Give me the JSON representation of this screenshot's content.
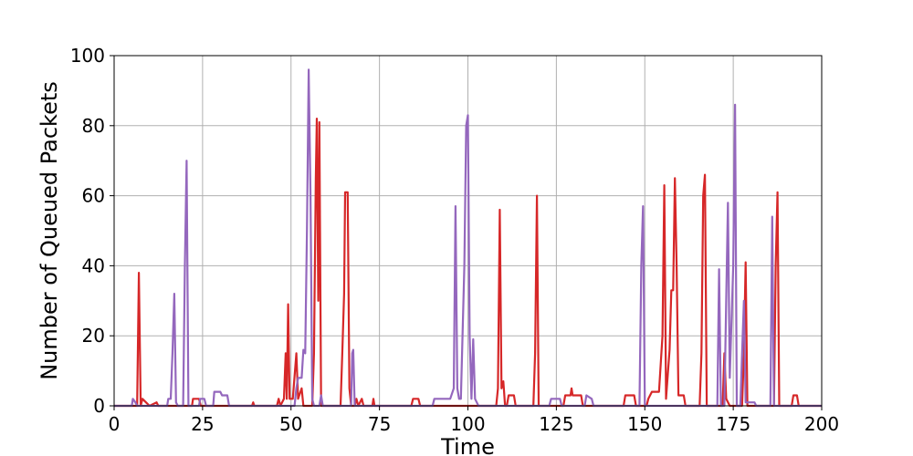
{
  "chart_data": {
    "type": "line",
    "title": "",
    "xlabel": "Time",
    "ylabel": "Number of Queued Packets",
    "xlim": [
      0,
      200
    ],
    "ylim": [
      0,
      100
    ],
    "x_ticks": [
      0,
      25,
      50,
      75,
      100,
      125,
      150,
      175,
      200
    ],
    "y_ticks": [
      0,
      20,
      40,
      60,
      80,
      100
    ],
    "grid": true,
    "legend": "none",
    "series": [
      {
        "color": "#d62728",
        "values": [
          [
            0,
            0
          ],
          [
            6.5,
            0
          ],
          [
            7,
            38
          ],
          [
            7.5,
            0
          ],
          [
            8,
            2
          ],
          [
            9,
            1
          ],
          [
            10,
            0
          ],
          [
            12,
            1
          ],
          [
            12.5,
            0
          ],
          [
            22,
            0
          ],
          [
            22.3,
            2
          ],
          [
            24,
            2
          ],
          [
            24.5,
            0
          ],
          [
            39,
            0
          ],
          [
            39.3,
            1
          ],
          [
            39.6,
            0
          ],
          [
            46,
            0
          ],
          [
            46.5,
            2
          ],
          [
            47,
            0
          ],
          [
            48,
            2
          ],
          [
            48.5,
            15
          ],
          [
            48.8,
            2
          ],
          [
            49.2,
            29
          ],
          [
            49.6,
            2
          ],
          [
            50.5,
            2
          ],
          [
            51.5,
            15
          ],
          [
            52,
            2
          ],
          [
            53,
            5
          ],
          [
            53.5,
            0
          ],
          [
            56,
            0
          ],
          [
            56.5,
            15
          ],
          [
            57,
            65
          ],
          [
            57.3,
            82
          ],
          [
            57.7,
            30
          ],
          [
            58,
            81
          ],
          [
            58.5,
            0
          ],
          [
            64,
            0
          ],
          [
            64.5,
            15
          ],
          [
            65,
            32
          ],
          [
            65.3,
            61
          ],
          [
            66,
            61
          ],
          [
            66.5,
            5
          ],
          [
            67,
            0
          ],
          [
            68,
            0
          ],
          [
            68.5,
            2
          ],
          [
            69,
            0
          ],
          [
            70,
            2
          ],
          [
            70.5,
            0
          ],
          [
            73,
            0
          ],
          [
            73.3,
            2
          ],
          [
            73.6,
            0
          ],
          [
            84,
            0
          ],
          [
            84.5,
            2
          ],
          [
            86,
            2
          ],
          [
            86.5,
            0
          ],
          [
            108,
            0
          ],
          [
            108.5,
            5
          ],
          [
            109,
            56
          ],
          [
            109.5,
            5
          ],
          [
            110,
            7
          ],
          [
            110.5,
            0
          ],
          [
            111,
            0
          ],
          [
            111.5,
            3
          ],
          [
            113,
            3
          ],
          [
            113.5,
            0
          ],
          [
            118.5,
            0
          ],
          [
            119,
            15
          ],
          [
            119.5,
            60
          ],
          [
            120,
            0
          ],
          [
            127,
            0
          ],
          [
            127.5,
            3
          ],
          [
            129,
            3
          ],
          [
            129.3,
            5
          ],
          [
            129.6,
            3
          ],
          [
            132,
            3
          ],
          [
            132.5,
            0
          ],
          [
            144,
            0
          ],
          [
            144.5,
            3
          ],
          [
            147,
            3
          ],
          [
            147.5,
            0
          ],
          [
            150.5,
            0
          ],
          [
            151,
            2
          ],
          [
            152,
            4
          ],
          [
            154,
            4
          ],
          [
            155,
            20
          ],
          [
            155.5,
            63
          ],
          [
            156,
            2
          ],
          [
            157,
            16
          ],
          [
            157.5,
            33
          ],
          [
            158,
            33
          ],
          [
            158.5,
            65
          ],
          [
            159,
            40
          ],
          [
            159.5,
            3
          ],
          [
            161,
            3
          ],
          [
            161.5,
            0
          ],
          [
            165.5,
            0
          ],
          [
            166,
            15
          ],
          [
            166.5,
            60
          ],
          [
            167,
            66
          ],
          [
            167.5,
            0
          ],
          [
            172,
            0
          ],
          [
            172.5,
            15
          ],
          [
            173,
            2
          ],
          [
            174,
            0
          ],
          [
            177.5,
            0
          ],
          [
            178,
            15
          ],
          [
            178.5,
            41
          ],
          [
            179,
            0
          ],
          [
            186.5,
            0
          ],
          [
            187,
            40
          ],
          [
            187.5,
            61
          ],
          [
            188,
            0
          ],
          [
            191.5,
            0
          ],
          [
            192,
            3
          ],
          [
            193,
            3
          ],
          [
            193.5,
            0
          ],
          [
            200,
            0
          ]
        ]
      },
      {
        "color": "#9467bd",
        "values": [
          [
            0,
            0
          ],
          [
            5,
            0
          ],
          [
            5.3,
            2
          ],
          [
            6,
            1
          ],
          [
            6.5,
            0
          ],
          [
            15,
            0
          ],
          [
            15.3,
            2
          ],
          [
            16,
            2
          ],
          [
            16.5,
            15
          ],
          [
            17,
            32
          ],
          [
            17.5,
            1
          ],
          [
            18,
            0
          ],
          [
            19.5,
            0
          ],
          [
            20,
            40
          ],
          [
            20.5,
            70
          ],
          [
            21,
            0
          ],
          [
            24,
            0
          ],
          [
            24.3,
            2
          ],
          [
            25.5,
            2
          ],
          [
            26,
            0
          ],
          [
            28,
            0
          ],
          [
            28.3,
            4
          ],
          [
            30,
            4
          ],
          [
            30.5,
            3
          ],
          [
            32,
            3
          ],
          [
            32.5,
            0
          ],
          [
            51,
            0
          ],
          [
            51.5,
            5
          ],
          [
            52,
            8
          ],
          [
            53,
            8
          ],
          [
            53.5,
            16
          ],
          [
            54,
            15
          ],
          [
            54.5,
            50
          ],
          [
            55,
            96
          ],
          [
            55.5,
            60
          ],
          [
            56,
            2
          ],
          [
            56.5,
            0
          ],
          [
            58,
            0
          ],
          [
            58.5,
            3
          ],
          [
            59,
            0
          ],
          [
            67,
            0
          ],
          [
            67.3,
            15
          ],
          [
            67.6,
            16
          ],
          [
            68,
            0
          ],
          [
            90,
            0
          ],
          [
            90.5,
            2
          ],
          [
            95,
            2
          ],
          [
            96,
            5
          ],
          [
            96.5,
            57
          ],
          [
            97,
            5
          ],
          [
            97.5,
            2
          ],
          [
            98,
            2
          ],
          [
            99,
            40
          ],
          [
            99.5,
            80
          ],
          [
            100,
            83
          ],
          [
            100.5,
            20
          ],
          [
            101,
            2
          ],
          [
            101.5,
            19
          ],
          [
            102,
            2
          ],
          [
            102.5,
            1
          ],
          [
            103,
            0
          ],
          [
            123,
            0
          ],
          [
            123.5,
            2
          ],
          [
            126,
            2
          ],
          [
            126.5,
            0
          ],
          [
            133,
            0
          ],
          [
            133.5,
            3
          ],
          [
            135,
            2
          ],
          [
            135.5,
            0
          ],
          [
            148.5,
            0
          ],
          [
            149,
            40
          ],
          [
            149.5,
            57
          ],
          [
            150,
            0
          ],
          [
            170.5,
            0
          ],
          [
            171,
            39
          ],
          [
            171.5,
            0
          ],
          [
            172.5,
            0
          ],
          [
            173,
            30
          ],
          [
            173.5,
            58
          ],
          [
            174,
            8
          ],
          [
            175,
            40
          ],
          [
            175.5,
            86
          ],
          [
            176,
            0
          ],
          [
            177,
            0
          ],
          [
            177.5,
            15
          ],
          [
            178,
            30
          ],
          [
            178.5,
            1
          ],
          [
            181,
            1
          ],
          [
            181.5,
            0
          ],
          [
            185.5,
            0
          ],
          [
            186,
            54
          ],
          [
            186.5,
            0
          ],
          [
            200,
            0
          ]
        ]
      }
    ]
  }
}
